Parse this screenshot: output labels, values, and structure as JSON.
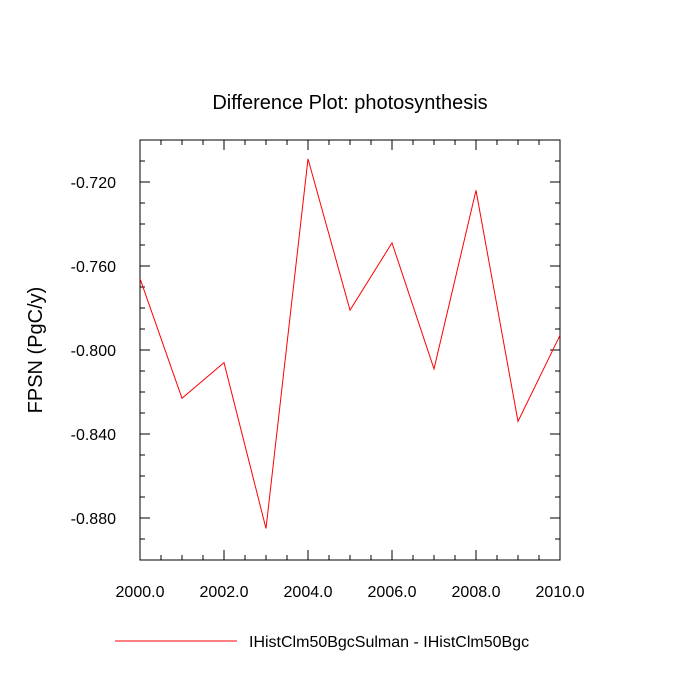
{
  "chart_data": {
    "type": "line",
    "title": "Difference Plot: photosynthesis",
    "xlabel": "",
    "ylabel": "FPSN  (PgC/y)",
    "xlim": [
      2000,
      2010
    ],
    "ylim": [
      -0.9,
      -0.7
    ],
    "x_ticks": [
      2000,
      2002,
      2004,
      2006,
      2008,
      2010
    ],
    "x_tick_labels": [
      "2000.0",
      "2002.0",
      "2004.0",
      "2006.0",
      "2008.0",
      "2010.0"
    ],
    "y_ticks": [
      -0.72,
      -0.76,
      -0.8,
      -0.84,
      -0.88
    ],
    "y_tick_labels": [
      "-0.720",
      "-0.760",
      "-0.800",
      "-0.840",
      "-0.880"
    ],
    "x": [
      2000,
      2001,
      2002,
      2003,
      2004,
      2005,
      2006,
      2007,
      2008,
      2009,
      2010
    ],
    "series": [
      {
        "name": "IHistClm50BgcSulman - IHistClm50Bgc",
        "color": "#ff0000",
        "values": [
          -0.766,
          -0.823,
          -0.806,
          -0.885,
          -0.709,
          -0.781,
          -0.749,
          -0.809,
          -0.724,
          -0.834,
          -0.793
        ]
      }
    ],
    "grid": false,
    "legend_position": "bottom"
  }
}
